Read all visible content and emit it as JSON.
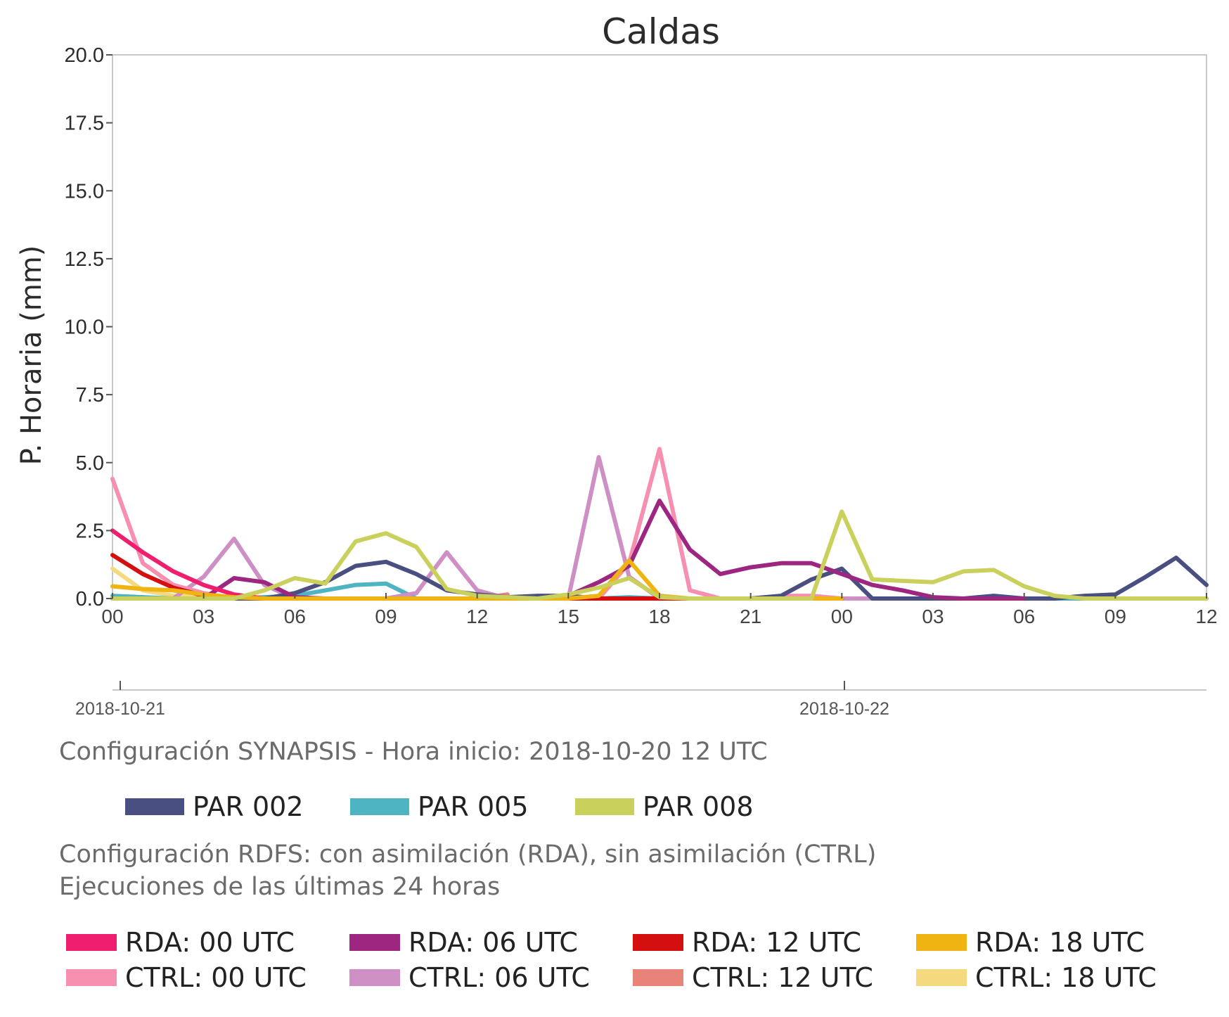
{
  "chart_data": {
    "type": "line",
    "title": "Caldas",
    "ylabel": "P. Horaria (mm)",
    "xlabel": "",
    "ylim": [
      0,
      20
    ],
    "y_ticks": [
      "0.0",
      "2.5",
      "5.0",
      "7.5",
      "10.0",
      "12.5",
      "15.0",
      "17.5",
      "20.0"
    ],
    "x_range_hours": [
      0,
      36
    ],
    "x_ticks": [
      "00",
      "03",
      "06",
      "09",
      "12",
      "15",
      "18",
      "21",
      "00",
      "03",
      "06",
      "09",
      "12"
    ],
    "date_ticks": [
      {
        "label": "2018-10-21",
        "x": "2018-10-21 00 UTC"
      },
      {
        "label": "2018-10-22",
        "x": "2018-10-22 00 UTC"
      }
    ],
    "grid": false,
    "series": [
      {
        "name": "CTRL: 18 UTC",
        "color": "#f5d97e",
        "x": [
          0,
          1,
          2,
          3,
          4,
          5,
          6,
          7,
          8,
          9,
          10,
          11,
          12,
          13
        ],
        "values": [
          1.1,
          0.3,
          0.1,
          0.05,
          0,
          0,
          0,
          0,
          0,
          0,
          0,
          0,
          0,
          0
        ]
      },
      {
        "name": "CTRL: 12 UTC",
        "color": "#e8837a",
        "x": [
          0,
          1,
          2,
          3,
          4,
          5,
          6,
          7,
          8,
          9,
          10,
          11,
          12,
          13
        ],
        "values": [
          0,
          0,
          0,
          0,
          0,
          0,
          0,
          0,
          0,
          0,
          0,
          0,
          0,
          0.15
        ]
      },
      {
        "name": "PAR 005",
        "color": "#4fb4c2",
        "x": [
          0,
          1,
          2,
          3,
          4,
          5,
          6,
          7,
          8,
          9,
          10,
          11,
          12,
          13,
          14,
          15,
          16,
          17,
          18,
          19,
          20,
          21,
          22,
          23,
          24,
          25,
          26,
          27,
          28,
          29,
          30,
          31,
          32,
          33,
          34,
          35,
          36
        ],
        "values": [
          0.1,
          0.05,
          0,
          0,
          0,
          0.05,
          0.1,
          0.3,
          0.5,
          0.55,
          0,
          0,
          0,
          0,
          0,
          0,
          0,
          0.05,
          0,
          0,
          0,
          0,
          0,
          0,
          0,
          0,
          0,
          0,
          0,
          0,
          0,
          0,
          0,
          0,
          0,
          0,
          0
        ]
      },
      {
        "name": "CTRL: 06 UTC",
        "color": "#cd8fc4",
        "x": [
          0,
          1,
          2,
          3,
          4,
          5,
          6,
          7,
          8,
          9,
          10,
          11,
          12,
          13,
          14,
          15,
          16,
          17,
          18,
          19,
          20,
          21,
          22,
          23,
          24,
          25,
          26,
          27,
          28,
          29,
          30
        ],
        "values": [
          0,
          0,
          0,
          0.8,
          2.2,
          0.5,
          0,
          0,
          0,
          0,
          0.2,
          1.7,
          0.3,
          0,
          0,
          0,
          5.2,
          0.8,
          0,
          0,
          0,
          0,
          0,
          0,
          0,
          0,
          0,
          0,
          0,
          0,
          0
        ]
      },
      {
        "name": "CTRL: 00 UTC",
        "color": "#f78fb0",
        "x": [
          0,
          1,
          2,
          3,
          4,
          5,
          6,
          7,
          8,
          9,
          10,
          11,
          12,
          13,
          14,
          15,
          16,
          17,
          18,
          19,
          20,
          21,
          22,
          23,
          24
        ],
        "values": [
          4.4,
          1.3,
          0.5,
          0.2,
          0,
          0,
          0,
          0,
          0,
          0,
          0,
          0,
          0,
          0,
          0,
          0,
          0,
          1.3,
          5.5,
          0.3,
          0,
          0,
          0.1,
          0.1,
          0
        ]
      },
      {
        "name": "PAR 002",
        "color": "#4a4f82",
        "x": [
          0,
          1,
          2,
          3,
          4,
          5,
          6,
          7,
          8,
          9,
          10,
          11,
          12,
          13,
          14,
          15,
          16,
          17,
          18,
          19,
          20,
          21,
          22,
          23,
          24,
          25,
          26,
          27,
          28,
          29,
          30,
          31,
          32,
          33,
          34,
          35,
          36
        ],
        "values": [
          0,
          0,
          0,
          0,
          0,
          0,
          0.2,
          0.6,
          1.2,
          1.35,
          0.9,
          0.3,
          0.15,
          0.05,
          0.1,
          0.1,
          0,
          0,
          0,
          0,
          0,
          0,
          0.1,
          0.7,
          1.1,
          0,
          0,
          0,
          0,
          0.1,
          0,
          0,
          0.1,
          0.15,
          0.8,
          1.5,
          0.5
        ]
      },
      {
        "name": "RDA: 06 UTC",
        "color": "#9c2680",
        "x": [
          0,
          1,
          2,
          3,
          4,
          5,
          6,
          7,
          8,
          9,
          10,
          11,
          12,
          13,
          14,
          15,
          16,
          17,
          18,
          19,
          20,
          21,
          22,
          23,
          24,
          25,
          26,
          27,
          28,
          29,
          30
        ],
        "values": [
          0,
          0,
          0,
          0,
          0.75,
          0.6,
          0.05,
          0,
          0,
          0,
          0,
          0,
          0,
          0,
          0,
          0.1,
          0.6,
          1.2,
          3.6,
          1.8,
          0.9,
          1.15,
          1.3,
          1.3,
          0.9,
          0.5,
          0.3,
          0.05,
          0,
          0,
          0
        ]
      },
      {
        "name": "RDA: 00 UTC",
        "color": "#ef1e6e",
        "x": [
          0,
          1,
          2,
          3,
          4,
          5,
          6,
          7,
          8,
          9,
          10,
          11,
          12,
          13,
          14,
          15,
          16,
          17,
          18,
          19,
          20,
          21,
          22,
          23,
          24
        ],
        "values": [
          2.5,
          1.7,
          1.0,
          0.5,
          0.15,
          0,
          0,
          0,
          0,
          0,
          0,
          0,
          0,
          0,
          0,
          0,
          0,
          0,
          0,
          0,
          0,
          0,
          0,
          0,
          0
        ]
      },
      {
        "name": "RDA: 12 UTC",
        "color": "#d30f0f",
        "x": [
          0,
          1,
          2,
          3,
          4,
          5,
          6,
          7,
          8,
          9,
          10,
          11,
          12,
          13,
          14,
          15,
          16,
          17,
          18,
          19,
          20,
          21,
          22,
          23,
          24
        ],
        "values": [
          1.6,
          0.9,
          0.4,
          0.1,
          0.05,
          0,
          0,
          0,
          0,
          0,
          0,
          0,
          0,
          0,
          0,
          0,
          0,
          0,
          0,
          0,
          0,
          0,
          0,
          0,
          0
        ]
      },
      {
        "name": "RDA: 18 UTC",
        "color": "#efb312",
        "x": [
          0,
          1,
          2,
          3,
          4,
          5,
          6,
          7,
          8,
          9,
          10,
          11,
          12,
          13,
          14,
          15,
          16,
          17,
          18,
          19,
          20,
          21,
          22,
          23,
          24
        ],
        "values": [
          0.45,
          0.35,
          0.3,
          0.15,
          0.05,
          0,
          0,
          0,
          0,
          0,
          0,
          0,
          0,
          0,
          0,
          0,
          0.1,
          1.4,
          0.1,
          0,
          0,
          0,
          0,
          0,
          0
        ]
      },
      {
        "name": "PAR 008",
        "color": "#c9d05c",
        "x": [
          0,
          1,
          2,
          3,
          4,
          5,
          6,
          7,
          8,
          9,
          10,
          11,
          12,
          13,
          14,
          15,
          16,
          17,
          18,
          19,
          20,
          21,
          22,
          23,
          24,
          25,
          26,
          27,
          28,
          29,
          30,
          31,
          32,
          33,
          34,
          35,
          36
        ],
        "values": [
          0,
          0,
          0,
          0,
          0,
          0.3,
          0.75,
          0.55,
          2.1,
          2.4,
          1.9,
          0.35,
          0.1,
          0.05,
          0,
          0.15,
          0.4,
          0.75,
          0.05,
          0,
          0,
          0,
          0,
          0,
          3.2,
          0.7,
          0.65,
          0.6,
          1.0,
          1.05,
          0.45,
          0.1,
          0,
          0,
          0,
          0,
          0
        ]
      }
    ]
  },
  "synapsis": {
    "caption": "Configuración SYNAPSIS - Hora inicio: 2018-10-20 12 UTC",
    "legend": [
      {
        "label": "PAR 002",
        "color": "#4a4f82"
      },
      {
        "label": "PAR 005",
        "color": "#4fb4c2"
      },
      {
        "label": "PAR 008",
        "color": "#c9d05c"
      }
    ]
  },
  "rdfs": {
    "caption_line1": "Configuración RDFS: con asimilación (RDA), sin asimilación (CTRL)",
    "caption_line2": " Ejecuciones de las últimas 24 horas",
    "legend": [
      {
        "label": "RDA: 00 UTC",
        "color": "#ef1e6e"
      },
      {
        "label": "RDA: 06 UTC",
        "color": "#9c2680"
      },
      {
        "label": "RDA: 12 UTC",
        "color": "#d30f0f"
      },
      {
        "label": "RDA: 18 UTC",
        "color": "#efb312"
      },
      {
        "label": "CTRL: 00 UTC",
        "color": "#f78fb0"
      },
      {
        "label": "CTRL: 06 UTC",
        "color": "#cd8fc4"
      },
      {
        "label": "CTRL: 12 UTC",
        "color": "#e8837a"
      },
      {
        "label": "CTRL: 18 UTC",
        "color": "#f5d97e"
      }
    ]
  }
}
